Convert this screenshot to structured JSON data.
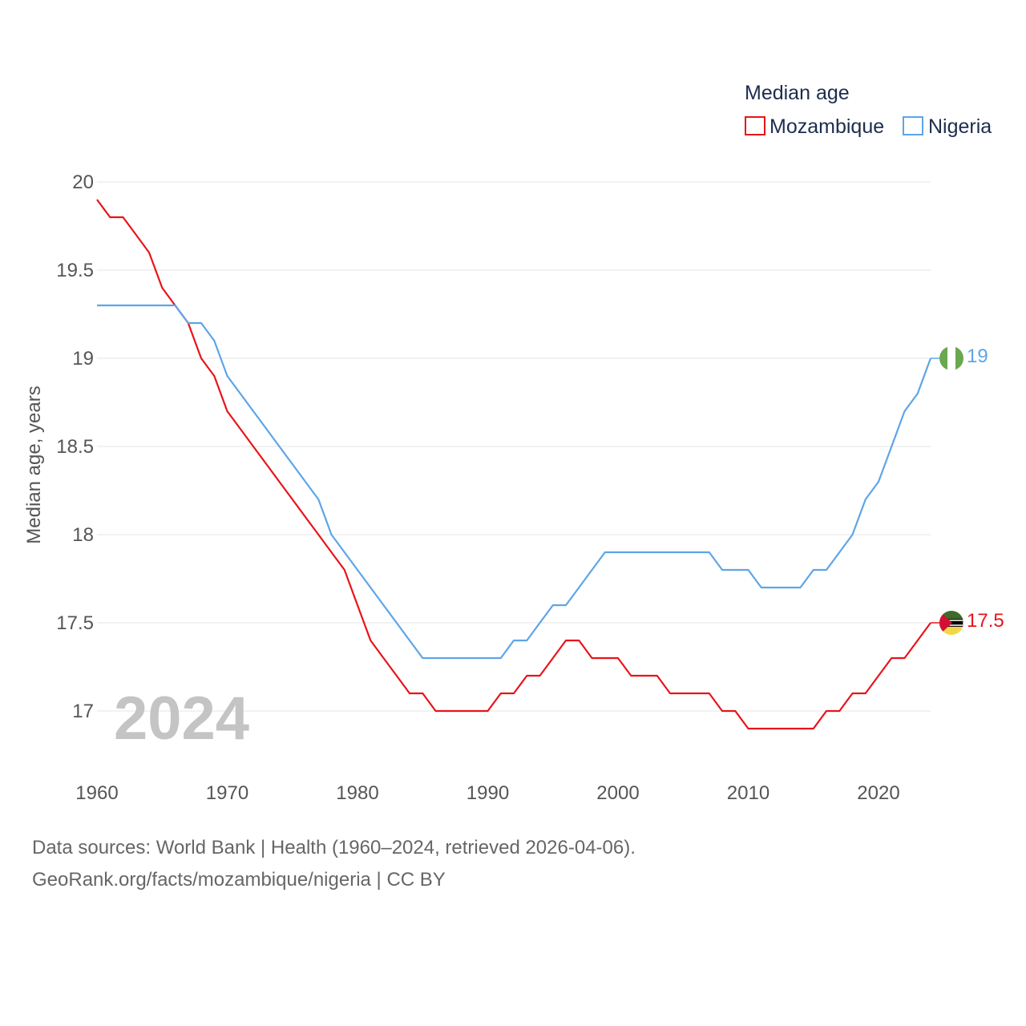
{
  "chart_data": {
    "type": "line",
    "legend_title": "Median age",
    "legend_position": "top-right",
    "ylabel": "Median age, years",
    "xlabel": "",
    "ylim": [
      16.7,
      20.1
    ],
    "xlim": [
      1960,
      2024
    ],
    "y_ticks": [
      17,
      17.5,
      18,
      18.5,
      19,
      19.5,
      20
    ],
    "y_tick_labels": [
      "17",
      "17.5",
      "18",
      "18.5",
      "19",
      "19.5",
      "20"
    ],
    "x_ticks": [
      1960,
      1970,
      1980,
      1990,
      2000,
      2010,
      2020
    ],
    "x_tick_labels": [
      "1960",
      "1970",
      "1980",
      "1990",
      "2000",
      "2010",
      "2020"
    ],
    "year_overlay": "2024",
    "x": [
      1960,
      1961,
      1962,
      1963,
      1964,
      1965,
      1966,
      1967,
      1968,
      1969,
      1970,
      1971,
      1972,
      1973,
      1974,
      1975,
      1976,
      1977,
      1978,
      1979,
      1980,
      1981,
      1982,
      1983,
      1984,
      1985,
      1986,
      1987,
      1988,
      1989,
      1990,
      1991,
      1992,
      1993,
      1994,
      1995,
      1996,
      1997,
      1998,
      1999,
      2000,
      2001,
      2002,
      2003,
      2004,
      2005,
      2006,
      2007,
      2008,
      2009,
      2010,
      2011,
      2012,
      2013,
      2014,
      2015,
      2016,
      2017,
      2018,
      2019,
      2020,
      2021,
      2022,
      2023,
      2024
    ],
    "series": [
      {
        "name": "Mozambique",
        "color": "#e8141a",
        "end_label": "17.5",
        "flag": "mozambique-flag-icon",
        "values": [
          19.9,
          19.8,
          19.8,
          19.7,
          19.6,
          19.4,
          19.3,
          19.2,
          19.0,
          18.9,
          18.7,
          18.6,
          18.5,
          18.4,
          18.3,
          18.2,
          18.1,
          18.0,
          17.9,
          17.8,
          17.6,
          17.4,
          17.3,
          17.2,
          17.1,
          17.1,
          17.0,
          17.0,
          17.0,
          17.0,
          17.0,
          17.1,
          17.1,
          17.2,
          17.2,
          17.3,
          17.4,
          17.4,
          17.3,
          17.3,
          17.3,
          17.2,
          17.2,
          17.2,
          17.1,
          17.1,
          17.1,
          17.1,
          17.0,
          17.0,
          16.9,
          16.9,
          16.9,
          16.9,
          16.9,
          16.9,
          17.0,
          17.0,
          17.1,
          17.1,
          17.2,
          17.3,
          17.3,
          17.4,
          17.5
        ]
      },
      {
        "name": "Nigeria",
        "color": "#5da5e8",
        "end_label": "19",
        "flag": "nigeria-flag-icon",
        "values": [
          19.3,
          19.3,
          19.3,
          19.3,
          19.3,
          19.3,
          19.3,
          19.2,
          19.2,
          19.1,
          18.9,
          18.8,
          18.7,
          18.6,
          18.5,
          18.4,
          18.3,
          18.2,
          18.0,
          17.9,
          17.8,
          17.7,
          17.6,
          17.5,
          17.4,
          17.3,
          17.3,
          17.3,
          17.3,
          17.3,
          17.3,
          17.3,
          17.4,
          17.4,
          17.5,
          17.6,
          17.6,
          17.7,
          17.8,
          17.9,
          17.9,
          17.9,
          17.9,
          17.9,
          17.9,
          17.9,
          17.9,
          17.9,
          17.8,
          17.8,
          17.8,
          17.7,
          17.7,
          17.7,
          17.7,
          17.8,
          17.8,
          17.9,
          18.0,
          18.2,
          18.3,
          18.5,
          18.7,
          18.8,
          19.0
        ]
      }
    ]
  },
  "source": {
    "line1": "Data sources: World Bank | Health (1960–2024, retrieved 2026-04-06).",
    "line2": "GeoRank.org/facts/mozambique/nigeria | CC BY"
  }
}
